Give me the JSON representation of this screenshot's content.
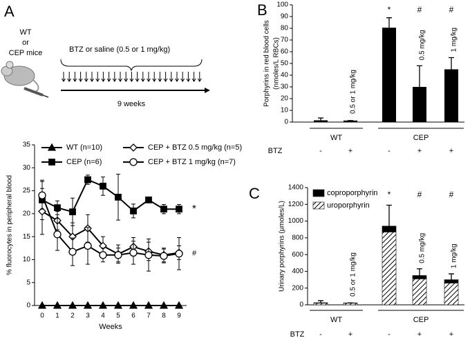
{
  "diagram": {
    "label": "A",
    "subject": [
      "WT",
      "or",
      "CEP mice"
    ],
    "treatment": "BTZ or saline  (0.5 or 1 mg/kg)",
    "duration": "9 weeks"
  },
  "chart_data": [
    {
      "type": "line",
      "xlabel": "Weeks",
      "ylabel": "% fluorocytes in peripheral blood",
      "x": [
        0,
        1,
        2,
        3,
        4,
        5,
        6,
        7,
        8,
        9
      ],
      "xlim": [
        -0.5,
        9.5
      ],
      "xticks": [
        0,
        1,
        2,
        3,
        4,
        5,
        6,
        7,
        8,
        9
      ],
      "ylim": [
        0,
        35
      ],
      "yticks": [
        0,
        5,
        10,
        15,
        20,
        25,
        30,
        35
      ],
      "legend": "top",
      "series": [
        {
          "name": "WT (n=10)",
          "marker": "triangle",
          "color": "#000000",
          "fill": "#000000",
          "values": [
            0,
            0,
            0,
            0,
            0,
            0,
            0,
            0,
            0,
            0
          ]
        },
        {
          "name": "CEP (n=6)",
          "marker": "square",
          "color": "#000000",
          "fill": "#000000",
          "values": [
            23,
            21.3,
            20.4,
            27.4,
            26,
            23.6,
            20.6,
            23,
            21,
            21
          ],
          "errors": [
            4.3,
            1.5,
            3,
            1,
            2,
            5,
            1.5,
            0.5,
            1,
            1
          ]
        },
        {
          "name": "CEP + BTZ 0.5 mg/kg (n=5)",
          "marker": "diamond",
          "color": "#000000",
          "fill": "#ffffff",
          "values": [
            20.5,
            18.5,
            15,
            16.8,
            13,
            11.2,
            12.8,
            11.8,
            11,
            11.5
          ],
          "errors": [
            5,
            2,
            3,
            3,
            2,
            2,
            2,
            2,
            1.5,
            1.5
          ]
        },
        {
          "name": "CEP + BTZ 1 mg/kg (n=7)",
          "marker": "circle",
          "color": "#000000",
          "fill": "#ffffff",
          "values": [
            24,
            15.5,
            11.7,
            13,
            11,
            11,
            11.5,
            11,
            10.8,
            11.3
          ],
          "errors": [
            3,
            3.5,
            3,
            4,
            1.5,
            1.5,
            2.5,
            3.5,
            1.5,
            3.5
          ]
        }
      ],
      "annotations": [
        {
          "text": "*",
          "series": 1
        },
        {
          "text": "#",
          "series": 3
        }
      ]
    },
    {
      "type": "bar",
      "panel": "B",
      "ylabel": [
        "Porphyrins in red blood cells",
        "(nmoles/L RBCs)"
      ],
      "categories": [
        "-",
        "+",
        "-",
        "+",
        "+"
      ],
      "row_label": "BTZ",
      "groups": [
        {
          "label": "WT",
          "first": 0,
          "last": 1
        },
        {
          "label": "CEP",
          "first": 2,
          "last": 4
        }
      ],
      "values": [
        1.5,
        1.3,
        80.5,
        30,
        45
      ],
      "errors": [
        2,
        0,
        8.5,
        18,
        10
      ],
      "color": "#000000",
      "markers": [
        null,
        null,
        "*",
        "#",
        "#"
      ],
      "dose_labels": [
        null,
        "0.5 or 1 mg/kg",
        null,
        "0.5 mg/kg",
        "1 mg/kg"
      ],
      "ylim": [
        0,
        100
      ],
      "yticks": [
        0,
        10,
        20,
        30,
        40,
        50,
        60,
        70,
        80,
        90,
        100
      ]
    },
    {
      "type": "stacked_bar",
      "panel": "C",
      "ylabel": [
        "Urinary porphyrins  (µmoles/L)"
      ],
      "categories": [
        "-",
        "+",
        "-",
        "+",
        "+"
      ],
      "row_label": "BTZ",
      "groups": [
        {
          "label": "WT",
          "first": 0,
          "last": 1
        },
        {
          "label": "CEP",
          "first": 2,
          "last": 4
        }
      ],
      "series": [
        {
          "name": "coproporphyrin",
          "color": "#000000",
          "values": [
            5,
            3,
            70,
            40,
            40
          ]
        },
        {
          "name": "uroporphyrin",
          "color": "#000000",
          "hatch": true,
          "values": [
            20,
            20,
            870,
            310,
            260
          ]
        }
      ],
      "errors": [
        25,
        0,
        250,
        80,
        70
      ],
      "legend": "top-left",
      "markers": [
        null,
        null,
        "*",
        "#",
        "#"
      ],
      "dose_labels": [
        null,
        "0.5 or 1 mg/kg",
        null,
        "0.5 mg/kg",
        "1 mg/kg"
      ],
      "ylim": [
        0,
        1400
      ],
      "yticks": [
        0,
        200,
        400,
        600,
        800,
        1000,
        1200,
        1400
      ]
    }
  ]
}
